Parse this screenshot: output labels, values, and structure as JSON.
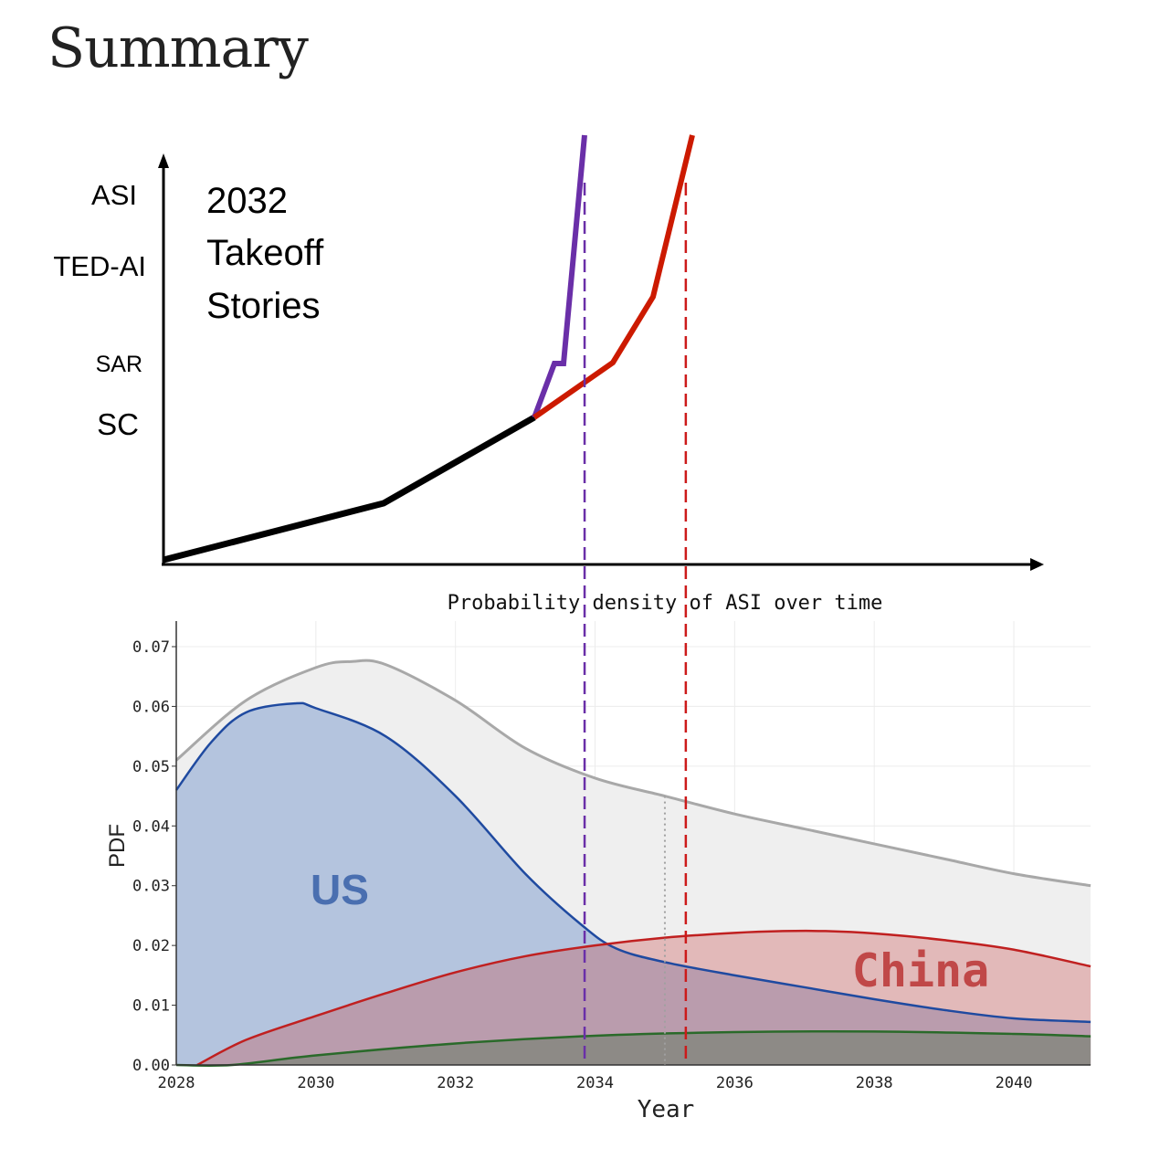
{
  "page_title": "Summary",
  "diagram": {
    "title_lines": [
      "2032",
      "Takeoff",
      "Stories"
    ],
    "y_levels": [
      "ASI",
      "TED-AI",
      "SAR",
      "SC"
    ],
    "colors": {
      "common": "#000000",
      "fast": "#6a2fa8",
      "slow": "#cc1a00"
    }
  },
  "chart_data": {
    "type": "area",
    "title": "Probability density of ASI over time",
    "xlabel": "Year",
    "ylabel": "PDF",
    "xlim": [
      2028,
      2041.1
    ],
    "ylim": [
      0,
      0.074
    ],
    "xticks": [
      "2028",
      "2030",
      "2032",
      "2034",
      "2036",
      "2038",
      "2040"
    ],
    "yticks": [
      "0.00",
      "0.01",
      "0.02",
      "0.03",
      "0.04",
      "0.05",
      "0.06",
      "0.07"
    ],
    "grid": true,
    "annotations": [
      {
        "text": "US",
        "color": "#4a6fb0"
      },
      {
        "text": "China",
        "color": "#c04848"
      }
    ],
    "series": [
      {
        "key": "total",
        "color": "#a8a8a8",
        "fill": "#efefef",
        "x": [
          2028,
          2029,
          2030,
          2030.5,
          2031,
          2032,
          2033,
          2034,
          2035,
          2036,
          2037,
          2038,
          2039,
          2040,
          2041.1
        ],
        "y": [
          0.051,
          0.061,
          0.0665,
          0.0675,
          0.067,
          0.061,
          0.053,
          0.048,
          0.045,
          0.042,
          0.0395,
          0.037,
          0.0345,
          0.032,
          0.03
        ]
      },
      {
        "name": "US",
        "color": "#1f4aa0",
        "fill": "#b4c4de",
        "x": [
          2028,
          2028.5,
          2029,
          2029.7,
          2030,
          2031,
          2032,
          2033,
          2033.8,
          2034.3,
          2035,
          2036,
          2037,
          2038,
          2039,
          2040,
          2041.1
        ],
        "y": [
          0.046,
          0.054,
          0.059,
          0.0605,
          0.0597,
          0.055,
          0.045,
          0.032,
          0.0235,
          0.0195,
          0.0172,
          0.015,
          0.013,
          0.011,
          0.0092,
          0.0078,
          0.0072
        ]
      },
      {
        "name": "China",
        "color": "#c02020",
        "fill": "rgba(200,70,70,0.32)",
        "x": [
          2028.3,
          2029,
          2030,
          2031,
          2032,
          2033,
          2034,
          2035,
          2036,
          2036.7,
          2037.3,
          2038,
          2039,
          2040,
          2041.1
        ],
        "y": [
          0,
          0.0042,
          0.0082,
          0.012,
          0.0155,
          0.0182,
          0.02,
          0.0213,
          0.0221,
          0.0224,
          0.0224,
          0.022,
          0.0209,
          0.0193,
          0.0165
        ]
      },
      {
        "key": "other",
        "color": "#2a6a2a",
        "fill": "#8d8a86",
        "x": [
          2028,
          2028.8,
          2030,
          2032,
          2034,
          2036,
          2038,
          2040,
          2041.1
        ],
        "y": [
          0,
          0,
          0.0016,
          0.0036,
          0.0049,
          0.0055,
          0.0056,
          0.0052,
          0.0048
        ]
      }
    ],
    "vlines": [
      {
        "x": 2033.85,
        "style": "dashed",
        "color": "#6a2fa8"
      },
      {
        "x": 2035.3,
        "style": "dashed",
        "color": "#cc1a1a"
      },
      {
        "x": 2035.0,
        "style": "dotted",
        "color": "#a0a0a0",
        "ymax": 0.045
      }
    ]
  }
}
